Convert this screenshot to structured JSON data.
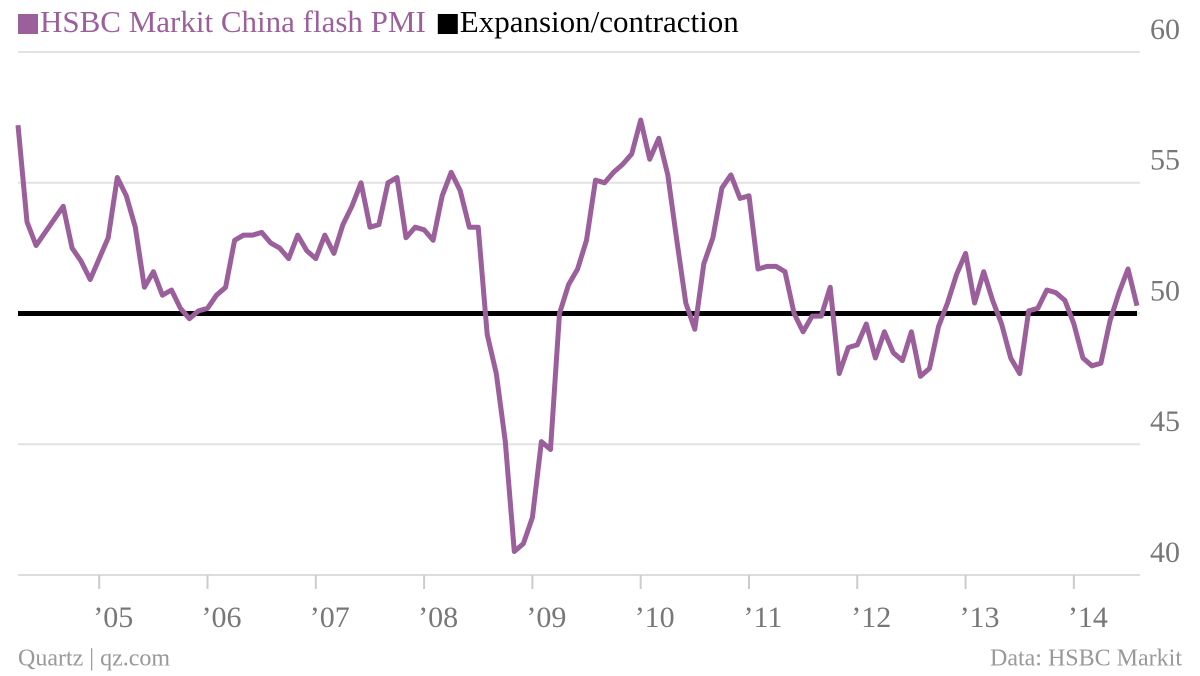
{
  "chart_data": {
    "type": "line",
    "series": [
      {
        "name": "HSBC Markit China flash PMI",
        "color": "#9b5f9b",
        "values": [
          57.2,
          53.5,
          52.6,
          53.1,
          53.6,
          54.1,
          52.5,
          52.0,
          51.3,
          52.1,
          52.9,
          55.2,
          54.5,
          53.3,
          51.0,
          51.6,
          50.7,
          50.9,
          50.2,
          49.8,
          50.1,
          50.2,
          50.7,
          51.0,
          52.8,
          53.0,
          53.0,
          53.1,
          52.7,
          52.5,
          52.1,
          53.0,
          52.4,
          52.1,
          53.0,
          52.3,
          53.4,
          54.1,
          55.0,
          53.3,
          53.4,
          55.0,
          55.2,
          52.9,
          53.3,
          53.2,
          52.8,
          54.5,
          55.4,
          54.7,
          53.3,
          53.3,
          49.2,
          47.7,
          45.1,
          40.9,
          41.2,
          42.2,
          45.1,
          44.8,
          50.0,
          51.1,
          51.7,
          52.8,
          55.1,
          55.0,
          55.4,
          55.7,
          56.1,
          57.4,
          55.9,
          56.7,
          55.3,
          52.8,
          50.4,
          49.4,
          51.9,
          52.9,
          54.8,
          55.3,
          54.4,
          54.5,
          51.7,
          51.8,
          51.8,
          51.6,
          50.0,
          49.3,
          49.9,
          49.9,
          51.0,
          47.7,
          48.7,
          48.8,
          49.6,
          48.3,
          49.3,
          48.5,
          48.2,
          49.3,
          47.6,
          47.9,
          49.5,
          50.4,
          51.5,
          52.3,
          50.4,
          51.6,
          50.5,
          49.6,
          48.3,
          47.7,
          50.1,
          50.2,
          50.9,
          50.8,
          50.5,
          49.6,
          48.3,
          48.0,
          48.1,
          49.7,
          50.8,
          51.7,
          50.3
        ]
      }
    ],
    "x": [
      2004.25,
      2004.333,
      2004.417,
      2004.5,
      2004.583,
      2004.667,
      2004.75,
      2004.833,
      2004.917,
      2005,
      2005.083,
      2005.167,
      2005.25,
      2005.333,
      2005.417,
      2005.5,
      2005.583,
      2005.667,
      2005.75,
      2005.833,
      2005.917,
      2006,
      2006.083,
      2006.167,
      2006.25,
      2006.333,
      2006.417,
      2006.5,
      2006.583,
      2006.667,
      2006.75,
      2006.833,
      2006.917,
      2007,
      2007.083,
      2007.167,
      2007.25,
      2007.333,
      2007.417,
      2007.5,
      2007.583,
      2007.667,
      2007.75,
      2007.833,
      2007.917,
      2008,
      2008.083,
      2008.167,
      2008.25,
      2008.333,
      2008.417,
      2008.5,
      2008.583,
      2008.667,
      2008.75,
      2008.833,
      2008.917,
      2009,
      2009.083,
      2009.167,
      2009.25,
      2009.333,
      2009.417,
      2009.5,
      2009.583,
      2009.667,
      2009.75,
      2009.833,
      2009.917,
      2010,
      2010.083,
      2010.167,
      2010.25,
      2010.333,
      2010.417,
      2010.5,
      2010.583,
      2010.667,
      2010.75,
      2010.833,
      2010.917,
      2011,
      2011.083,
      2011.167,
      2011.25,
      2011.333,
      2011.417,
      2011.5,
      2011.583,
      2011.667,
      2011.75,
      2011.833,
      2011.917,
      2012,
      2012.083,
      2012.167,
      2012.25,
      2012.333,
      2012.417,
      2012.5,
      2012.583,
      2012.667,
      2012.75,
      2012.833,
      2012.917,
      2013,
      2013.083,
      2013.167,
      2013.25,
      2013.333,
      2013.417,
      2013.5,
      2013.583,
      2013.667,
      2013.75,
      2013.833,
      2013.917,
      2014,
      2014.083,
      2014.167,
      2014.25,
      2014.333,
      2014.417,
      2014.5,
      2014.583
    ],
    "reference_line": {
      "name": "Expansion/contraction",
      "color": "#000000",
      "value": 50
    },
    "xlim": [
      2004.25,
      2014.583
    ],
    "xticks": [
      {
        "value": 2005,
        "label": "’05"
      },
      {
        "value": 2006,
        "label": "’06"
      },
      {
        "value": 2007,
        "label": "’07"
      },
      {
        "value": 2008,
        "label": "’08"
      },
      {
        "value": 2009,
        "label": "’09"
      },
      {
        "value": 2010,
        "label": "’10"
      },
      {
        "value": 2011,
        "label": "’11"
      },
      {
        "value": 2012,
        "label": "’12"
      },
      {
        "value": 2013,
        "label": "’13"
      },
      {
        "value": 2014,
        "label": "’14"
      }
    ],
    "ylim": [
      40,
      60
    ],
    "yticks": [
      40,
      45,
      50,
      55,
      60
    ],
    "grid": true,
    "legend": "top-left",
    "credit": "Quartz | qz.com",
    "source": "Data: HSBC Markit"
  }
}
